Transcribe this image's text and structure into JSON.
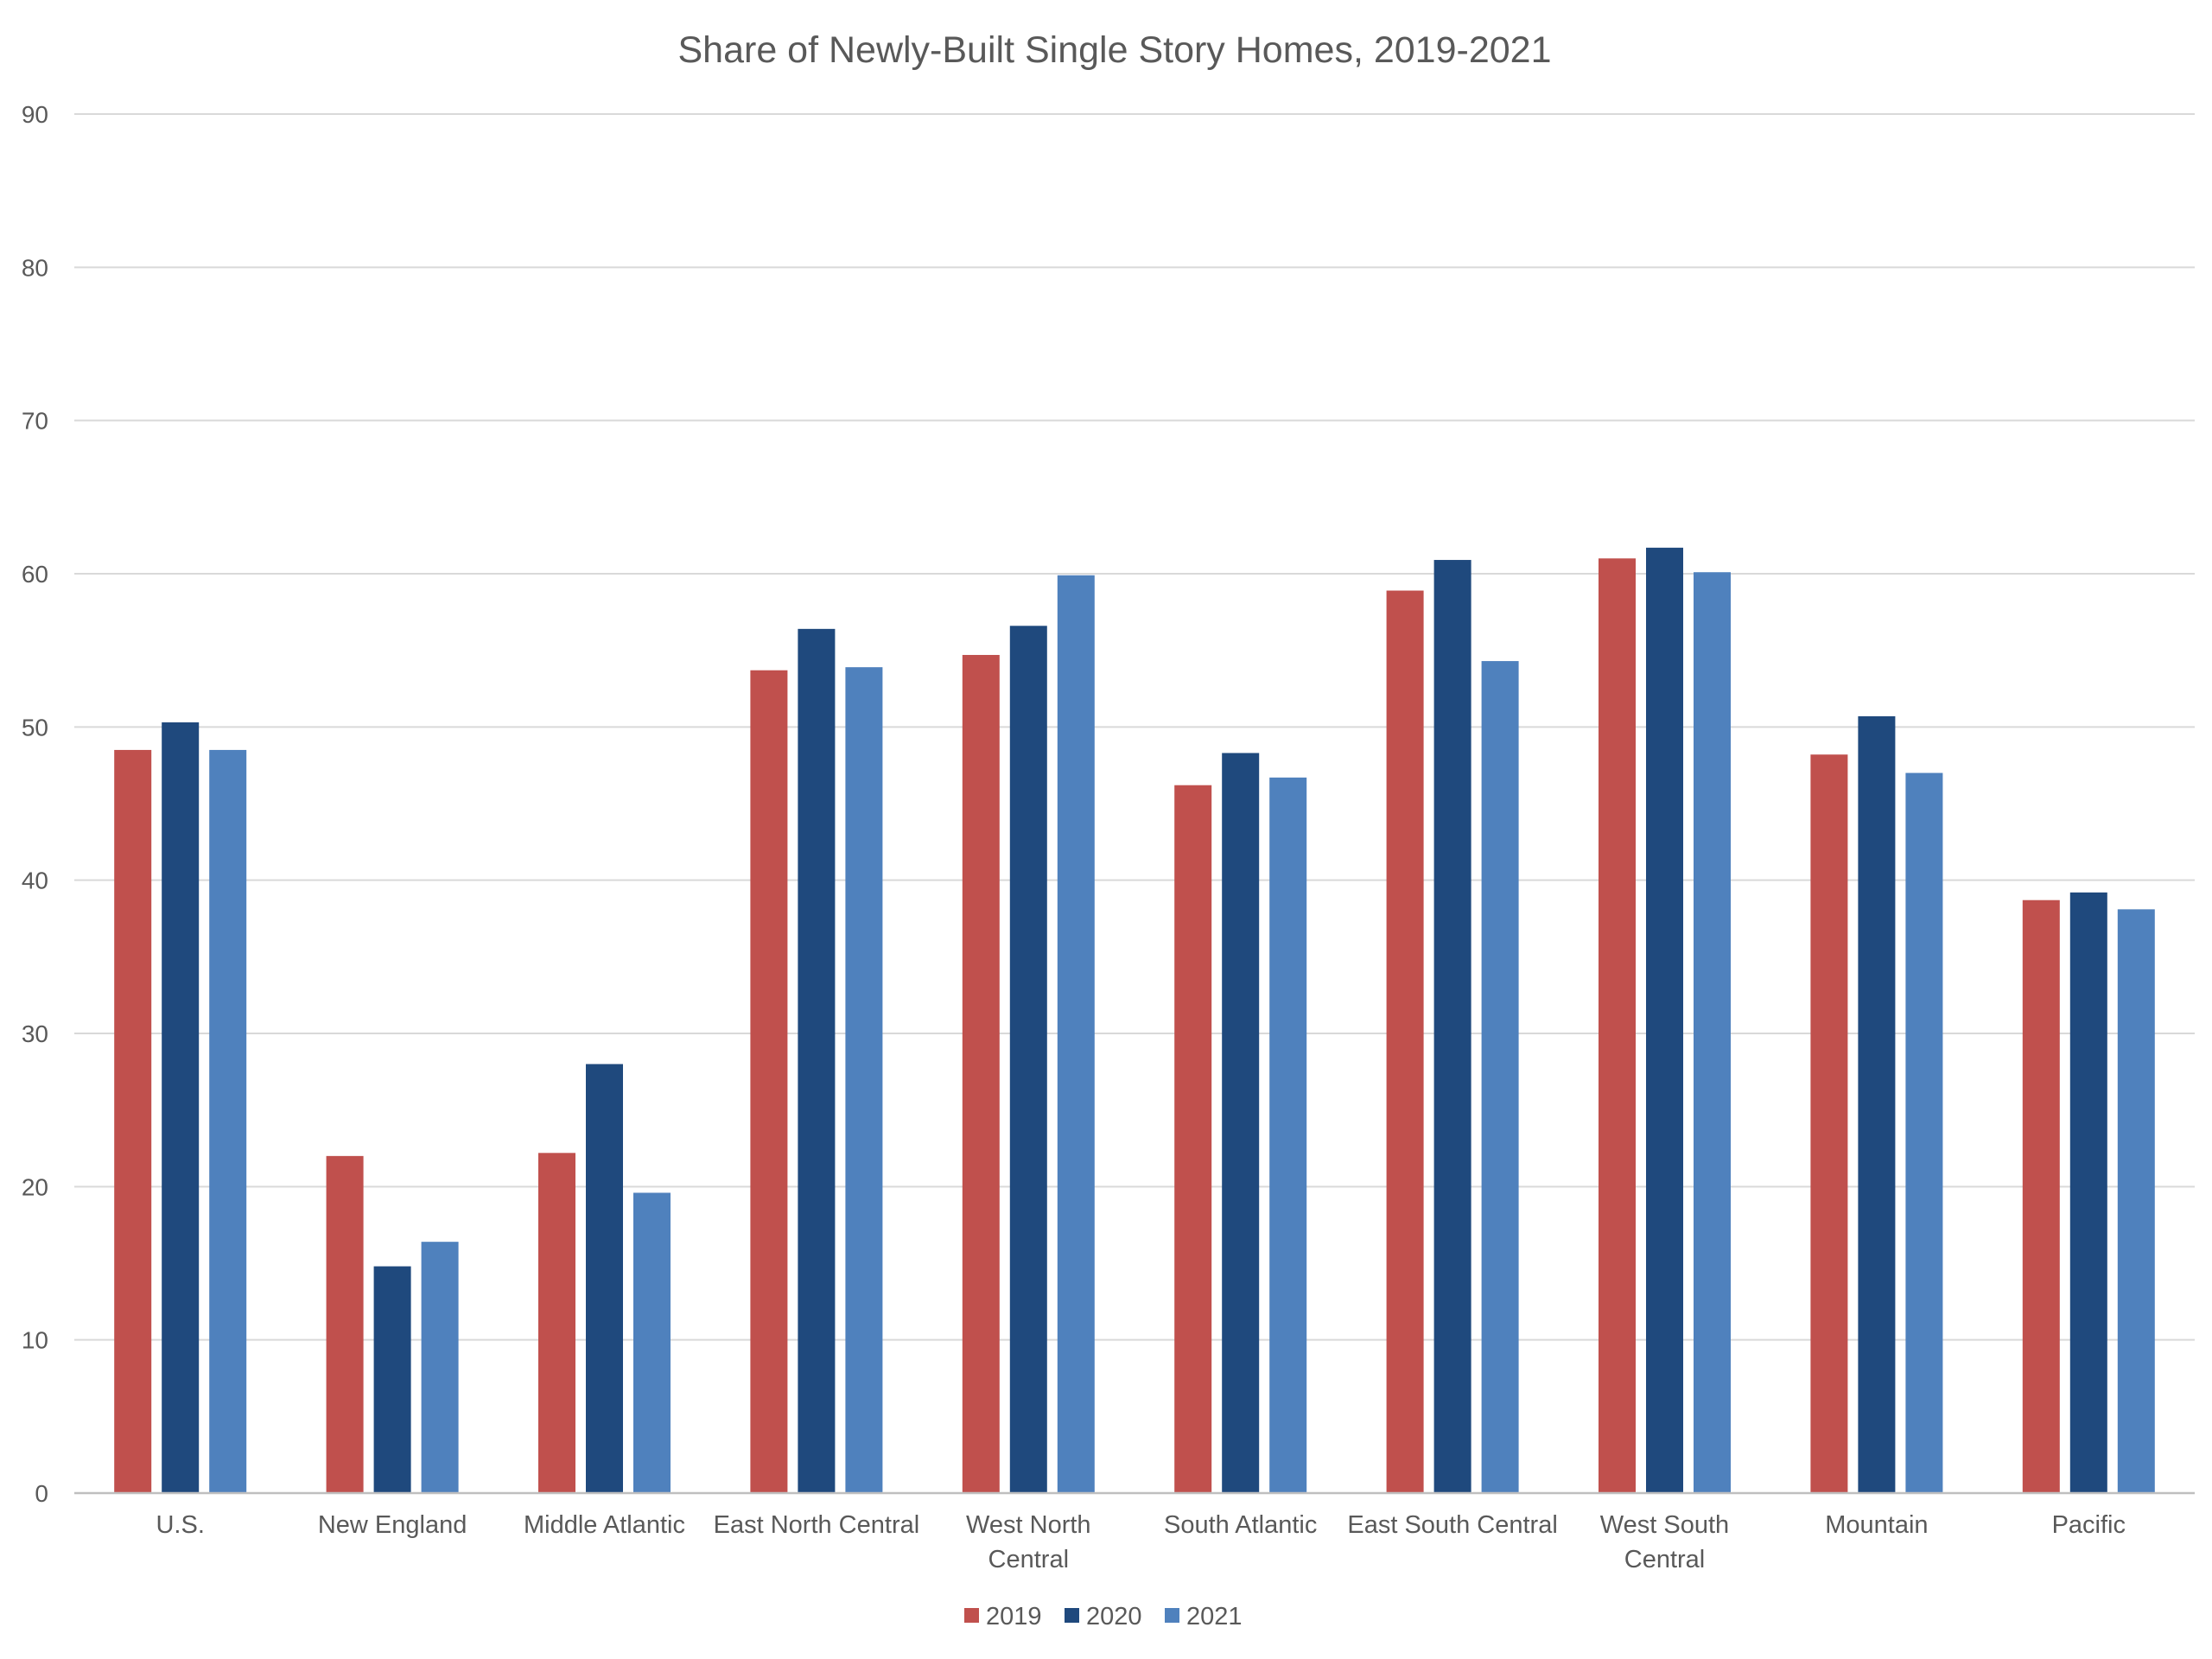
{
  "chart_data": {
    "type": "bar",
    "title": "Share of Newly-Built Single Story Homes, 2019-2021",
    "xlabel": "",
    "ylabel": "",
    "ylim": [
      0,
      90
    ],
    "yticks": [
      0,
      10,
      20,
      30,
      40,
      50,
      60,
      70,
      80,
      90
    ],
    "grid": true,
    "legend_position": "bottom",
    "categories": [
      [
        "U.S."
      ],
      [
        "New England"
      ],
      [
        "Middle Atlantic"
      ],
      [
        "East North Central"
      ],
      [
        "West North",
        "Central"
      ],
      [
        "South Atlantic"
      ],
      [
        "East South Central"
      ],
      [
        "West South",
        "Central"
      ],
      [
        "Mountain"
      ],
      [
        "Pacific"
      ]
    ],
    "series": [
      {
        "name": "2019",
        "color": "#c0504d",
        "values": [
          48.5,
          22.0,
          22.2,
          53.7,
          54.7,
          46.2,
          58.9,
          61.0,
          48.2,
          38.7
        ]
      },
      {
        "name": "2020",
        "color": "#1f497d",
        "values": [
          50.3,
          14.8,
          28.0,
          56.4,
          56.6,
          48.3,
          60.9,
          61.7,
          50.7,
          39.2
        ]
      },
      {
        "name": "2021",
        "color": "#4f81bd",
        "values": [
          48.5,
          16.4,
          19.6,
          53.9,
          59.9,
          46.7,
          54.3,
          60.1,
          47.0,
          38.1
        ]
      }
    ]
  }
}
